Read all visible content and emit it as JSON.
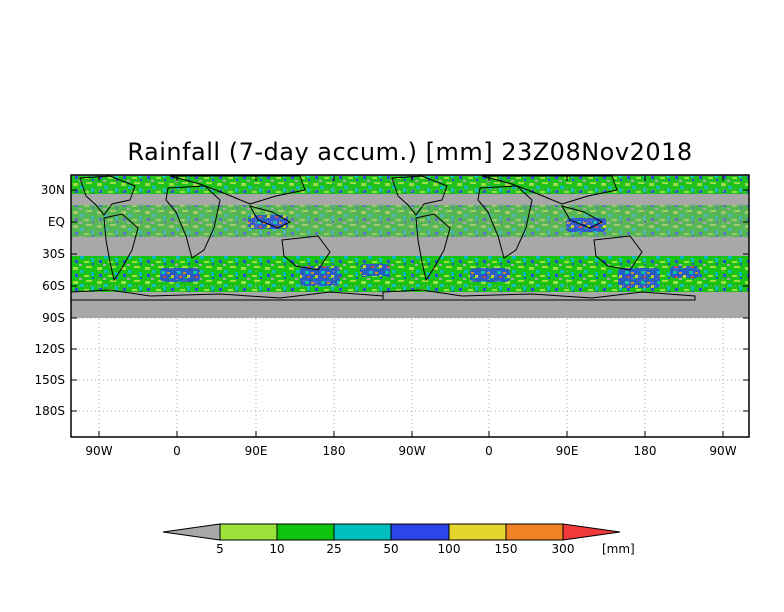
{
  "title": "Rainfall (7-day accum.) [mm] 23Z08Nov2018",
  "map": {
    "lat_ticks": [
      "30N",
      "EQ",
      "30S",
      "60S",
      "90S",
      "120S",
      "150S",
      "180S"
    ],
    "lon_ticks": [
      "90W",
      "0",
      "90E",
      "180",
      "90W",
      "0",
      "90E",
      "180",
      "90W"
    ],
    "colors": {
      "no_data_gray": "#a8a8a8",
      "light_green": "#9be33a",
      "green": "#10c40e",
      "teal": "#00bfbf",
      "blue": "#2a45e8",
      "yellow": "#e5d52c",
      "orange": "#f08224",
      "red": "#f03a3a"
    }
  },
  "colorbar": {
    "labels": [
      "5",
      "10",
      "25",
      "50",
      "100",
      "150",
      "300"
    ],
    "units": "[mm]",
    "colors": [
      "#a8a8a8",
      "#9be33a",
      "#10c40e",
      "#00bfbf",
      "#2a45e8",
      "#e5d52c",
      "#f08224",
      "#f03a3a"
    ]
  }
}
